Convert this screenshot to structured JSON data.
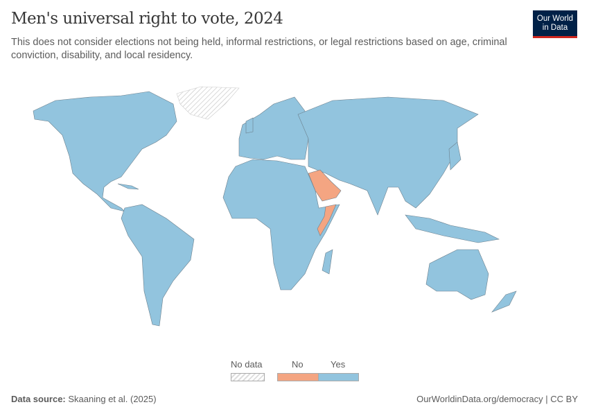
{
  "header": {
    "title": "Men's universal right to vote, 2024",
    "subtitle": "This does not consider elections not being held, informal restrictions, or legal restrictions based on age, criminal conviction, disability, and local residency.",
    "logo_line1": "Our World",
    "logo_line2": "in Data"
  },
  "legend": {
    "no_data": "No data",
    "no": "No",
    "yes": "Yes"
  },
  "colors": {
    "yes": "#92c4de",
    "no": "#f4a582",
    "no_data": "hatched-gray",
    "border": "#6b7f8c",
    "logo_bg": "#002147",
    "logo_accent": "#ce261e"
  },
  "map": {
    "year": "2024",
    "no_countries": [
      "Saudi Arabia",
      "Somalia"
    ],
    "no_data_regions": [
      "Greenland"
    ],
    "rest": "Yes"
  },
  "footer": {
    "source_label": "Data source:",
    "source": "Skaaning et al. (2025)",
    "url": "OurWorldinData.org/democracy",
    "license": "CC BY"
  }
}
